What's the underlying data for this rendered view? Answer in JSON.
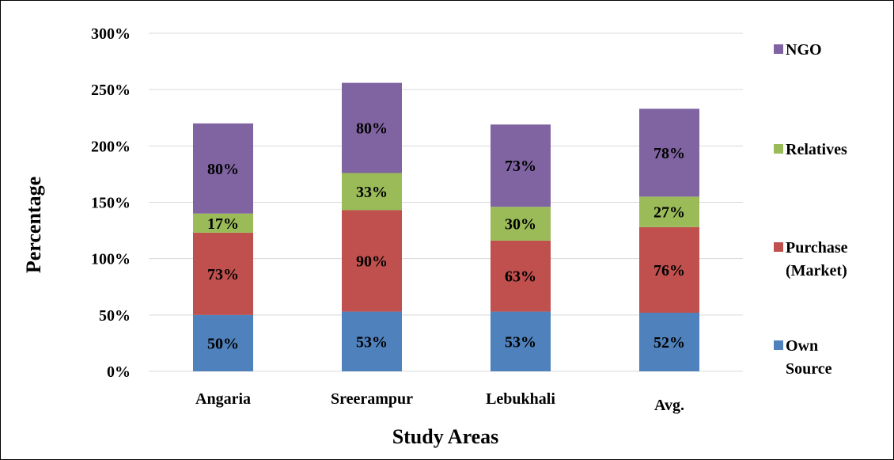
{
  "chart_data": {
    "type": "bar",
    "stacked": true,
    "title": "",
    "xlabel": "Study Areas",
    "ylabel": "Percentage",
    "ylim": [
      0,
      300
    ],
    "yticks": [
      0,
      50,
      100,
      150,
      200,
      250,
      300
    ],
    "ytick_labels": [
      "0%",
      "50%",
      "100%",
      "150%",
      "200%",
      "250%",
      "300%"
    ],
    "grid": true,
    "legend_position": "right",
    "categories": [
      "Angaria",
      "Sreerampur",
      "Lebukhali",
      "Avg."
    ],
    "series": [
      {
        "name": "Own Source",
        "legend_lines": [
          "Own",
          "Source"
        ],
        "color": "#4F81BD",
        "values": [
          50,
          53,
          53,
          52
        ],
        "labels": [
          "50%",
          "53%",
          "53%",
          "52%"
        ]
      },
      {
        "name": "Purchase (Market)",
        "legend_lines": [
          "Purchase",
          "(Market)"
        ],
        "color": "#C0504D",
        "values": [
          73,
          90,
          63,
          76
        ],
        "labels": [
          "73%",
          "90%",
          "63%",
          "76%"
        ]
      },
      {
        "name": "Relatives",
        "legend_lines": [
          "Relatives"
        ],
        "color": "#9BBB59",
        "values": [
          17,
          33,
          30,
          27
        ],
        "labels": [
          "17%",
          "33%",
          "30%",
          "27%"
        ]
      },
      {
        "name": "NGO",
        "legend_lines": [
          "NGO"
        ],
        "color": "#8064A2",
        "values": [
          80,
          80,
          73,
          78
        ],
        "labels": [
          "80%",
          "80%",
          "73%",
          "78%"
        ]
      }
    ]
  }
}
